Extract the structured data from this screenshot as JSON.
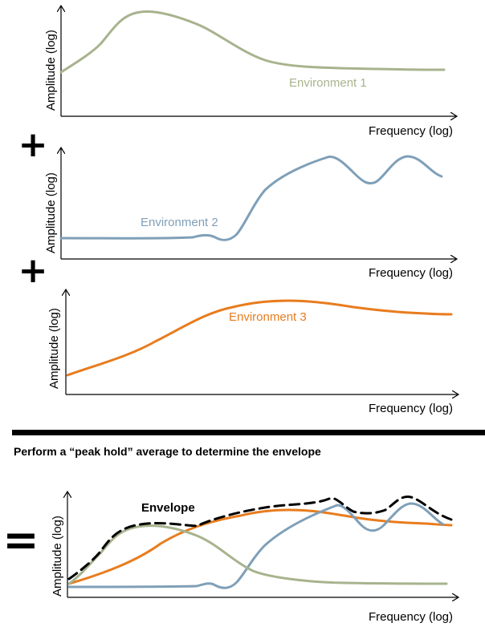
{
  "colors": {
    "env1": "#a7b38d",
    "env2": "#7f9fb8",
    "env3": "#e87c1e",
    "envelope": "#000000",
    "divider": "#000000"
  },
  "axis_labels": {
    "y": "Amplitude (log)",
    "x": "Frequency (log)"
  },
  "panels": [
    {
      "label": "Environment 1"
    },
    {
      "label": "Environment 2"
    },
    {
      "label": "Environment 3"
    }
  ],
  "operators": {
    "plus": "+",
    "equals": "="
  },
  "caption": "Perform a “peak hold” average to determine the envelope",
  "result": {
    "envelope_label": "Envelope"
  }
}
